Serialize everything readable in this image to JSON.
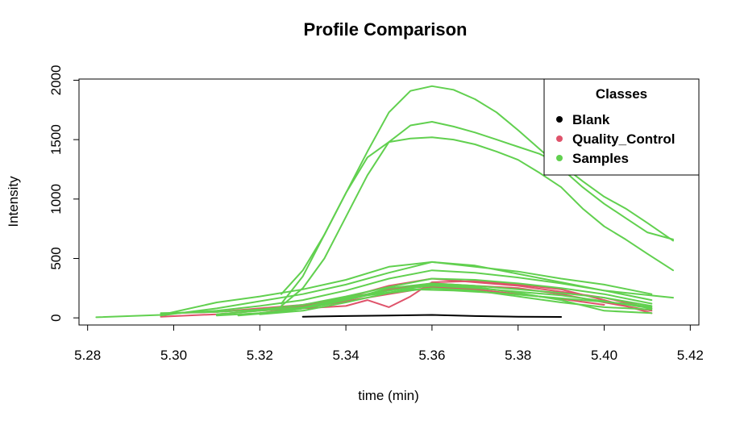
{
  "chart_data": {
    "type": "line",
    "title": "Profile Comparison",
    "xlabel": "time (min)",
    "ylabel": "Intensity",
    "xlim": [
      5.278,
      5.422
    ],
    "ylim": [
      -60,
      2010
    ],
    "x_ticks": [
      5.28,
      5.3,
      5.32,
      5.34,
      5.36,
      5.38,
      5.4,
      5.42
    ],
    "x_tick_labels": [
      "5.28",
      "5.30",
      "5.32",
      "5.34",
      "5.36",
      "5.38",
      "5.40",
      "5.42"
    ],
    "y_ticks": [
      0,
      500,
      1000,
      1500,
      2000
    ],
    "y_tick_labels": [
      "0",
      "500",
      "1000",
      "1500",
      "2000"
    ],
    "grid": false,
    "legend": {
      "title": "Classes",
      "position": "top-right",
      "entries": [
        {
          "name": "Blank",
          "color": "#000000"
        },
        {
          "name": "Quality_Control",
          "color": "#DF536B"
        },
        {
          "name": "Samples",
          "color": "#61D04F"
        }
      ]
    },
    "series": [
      {
        "class": "Blank",
        "color": "#000000",
        "x": [
          5.33,
          5.34,
          5.35,
          5.36,
          5.37,
          5.38,
          5.39
        ],
        "y": [
          10,
          15,
          20,
          25,
          15,
          10,
          8
        ]
      },
      {
        "class": "Quality_Control",
        "color": "#DF536B",
        "x": [
          5.297,
          5.31,
          5.32,
          5.33,
          5.34,
          5.345,
          5.35,
          5.355,
          5.36,
          5.37,
          5.38,
          5.39,
          5.4,
          5.411
        ],
        "y": [
          10,
          30,
          60,
          80,
          100,
          150,
          90,
          180,
          300,
          310,
          280,
          240,
          150,
          40
        ]
      },
      {
        "class": "Quality_Control",
        "color": "#DF536B",
        "x": [
          5.3,
          5.31,
          5.32,
          5.33,
          5.34,
          5.35,
          5.36,
          5.37,
          5.38,
          5.39,
          5.4,
          5.411
        ],
        "y": [
          40,
          50,
          80,
          110,
          170,
          270,
          330,
          300,
          270,
          220,
          170,
          80
        ]
      },
      {
        "class": "Quality_Control",
        "color": "#DF536B",
        "x": [
          5.31,
          5.32,
          5.33,
          5.34,
          5.35,
          5.36,
          5.37,
          5.38,
          5.39,
          5.4,
          5.411
        ],
        "y": [
          50,
          70,
          100,
          160,
          240,
          290,
          270,
          250,
          200,
          130,
          60
        ]
      },
      {
        "class": "Quality_Control",
        "color": "#DF536B",
        "x": [
          5.32,
          5.33,
          5.34,
          5.35,
          5.36,
          5.37,
          5.38,
          5.39,
          5.4
        ],
        "y": [
          40,
          80,
          140,
          200,
          260,
          240,
          200,
          160,
          110
        ]
      },
      {
        "class": "Samples",
        "color": "#61D04F",
        "x": [
          5.325,
          5.33,
          5.335,
          5.34,
          5.345,
          5.35,
          5.355,
          5.36,
          5.365,
          5.37,
          5.375,
          5.38,
          5.385,
          5.39,
          5.395,
          5.4,
          5.405,
          5.41,
          5.416
        ],
        "y": [
          200,
          400,
          700,
          1050,
          1400,
          1730,
          1910,
          1950,
          1920,
          1840,
          1730,
          1580,
          1420,
          1260,
          1100,
          960,
          840,
          720,
          660
        ]
      },
      {
        "class": "Samples",
        "color": "#61D04F",
        "x": [
          5.325,
          5.33,
          5.335,
          5.34,
          5.345,
          5.35,
          5.355,
          5.36,
          5.365,
          5.37,
          5.375,
          5.38,
          5.385,
          5.39,
          5.395,
          5.4,
          5.405,
          5.41,
          5.416
        ],
        "y": [
          100,
          250,
          500,
          850,
          1200,
          1480,
          1620,
          1650,
          1610,
          1560,
          1500,
          1440,
          1380,
          1290,
          1150,
          1020,
          920,
          800,
          650
        ]
      },
      {
        "class": "Samples",
        "color": "#61D04F",
        "x": [
          5.325,
          5.33,
          5.335,
          5.34,
          5.345,
          5.35,
          5.355,
          5.36,
          5.365,
          5.37,
          5.375,
          5.38,
          5.385,
          5.39,
          5.395,
          5.4,
          5.405,
          5.41,
          5.416
        ],
        "y": [
          120,
          350,
          700,
          1050,
          1350,
          1480,
          1510,
          1520,
          1500,
          1460,
          1400,
          1330,
          1220,
          1100,
          920,
          770,
          660,
          540,
          400
        ]
      },
      {
        "class": "Samples",
        "color": "#61D04F",
        "x": [
          5.282,
          5.297,
          5.31,
          5.32,
          5.33,
          5.34,
          5.35,
          5.36,
          5.37,
          5.38,
          5.39,
          5.4,
          5.411
        ],
        "y": [
          5,
          25,
          130,
          180,
          240,
          320,
          430,
          470,
          430,
          390,
          330,
          280,
          200
        ]
      },
      {
        "class": "Samples",
        "color": "#61D04F",
        "x": [
          5.297,
          5.31,
          5.32,
          5.33,
          5.34,
          5.35,
          5.36,
          5.37,
          5.38,
          5.39,
          5.4,
          5.416
        ],
        "y": [
          20,
          80,
          140,
          200,
          280,
          380,
          470,
          440,
          370,
          300,
          230,
          170
        ]
      },
      {
        "class": "Samples",
        "color": "#61D04F",
        "x": [
          5.297,
          5.31,
          5.32,
          5.33,
          5.34,
          5.35,
          5.36,
          5.37,
          5.38,
          5.39,
          5.4,
          5.411
        ],
        "y": [
          30,
          60,
          100,
          150,
          230,
          330,
          400,
          380,
          340,
          290,
          230,
          150
        ]
      },
      {
        "class": "Samples",
        "color": "#61D04F",
        "x": [
          5.297,
          5.31,
          5.32,
          5.33,
          5.34,
          5.35,
          5.36,
          5.37,
          5.38,
          5.39,
          5.4,
          5.411
        ],
        "y": [
          40,
          50,
          70,
          110,
          180,
          260,
          330,
          320,
          290,
          250,
          200,
          120
        ]
      },
      {
        "class": "Samples",
        "color": "#61D04F",
        "x": [
          5.31,
          5.32,
          5.33,
          5.34,
          5.35,
          5.36,
          5.37,
          5.38,
          5.39,
          5.4,
          5.411
        ],
        "y": [
          30,
          60,
          90,
          150,
          250,
          290,
          270,
          240,
          210,
          170,
          100
        ]
      },
      {
        "class": "Samples",
        "color": "#61D04F",
        "x": [
          5.31,
          5.32,
          5.33,
          5.34,
          5.35,
          5.36,
          5.37,
          5.38,
          5.39,
          5.4,
          5.411
        ],
        "y": [
          20,
          40,
          80,
          160,
          230,
          270,
          250,
          220,
          190,
          140,
          80
        ]
      },
      {
        "class": "Samples",
        "color": "#61D04F",
        "x": [
          5.315,
          5.325,
          5.335,
          5.345,
          5.355,
          5.365,
          5.375,
          5.385,
          5.395,
          5.405,
          5.411
        ],
        "y": [
          20,
          50,
          110,
          190,
          240,
          230,
          210,
          180,
          150,
          120,
          90
        ]
      },
      {
        "class": "Samples",
        "color": "#61D04F",
        "x": [
          5.32,
          5.33,
          5.34,
          5.35,
          5.36,
          5.37,
          5.38,
          5.39,
          5.4,
          5.411
        ],
        "y": [
          30,
          60,
          130,
          210,
          250,
          230,
          180,
          130,
          90,
          70
        ]
      },
      {
        "class": "Samples",
        "color": "#61D04F",
        "x": [
          5.32,
          5.33,
          5.34,
          5.35,
          5.36,
          5.37,
          5.38,
          5.39,
          5.4,
          5.411
        ],
        "y": [
          60,
          90,
          170,
          230,
          280,
          260,
          210,
          150,
          60,
          40
        ]
      }
    ]
  }
}
